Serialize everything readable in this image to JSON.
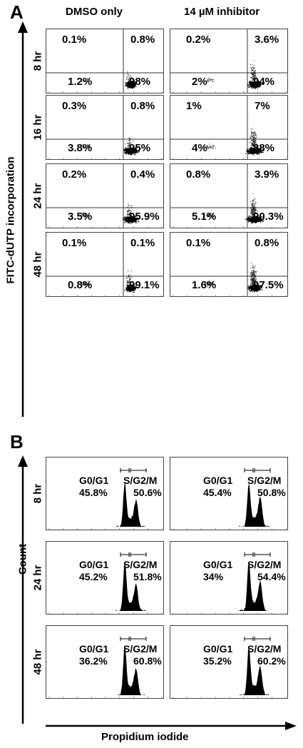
{
  "panel_a": {
    "letter": "A",
    "col_headers": [
      "DMSO only",
      "14 µM inhibitor"
    ],
    "y_axis_label": "FITC-dUTP incorporation",
    "rows": [
      {
        "time": "8 hr",
        "plots": [
          {
            "ul": "0.1%",
            "ur": "0.8%",
            "ll": "1.2%",
            "lr": "98%"
          },
          {
            "ul": "0.2%",
            "ur": "3.6%",
            "ll": "2%",
            "lr": "94%"
          }
        ]
      },
      {
        "time": "16 hr",
        "plots": [
          {
            "ul": "0.3%",
            "ur": "0.8%",
            "ll": "3.8%",
            "lr": "95%"
          },
          {
            "ul": "1%",
            "ur": "7%",
            "ll": "4%",
            "lr": "88%"
          }
        ]
      },
      {
        "time": "24 hr",
        "plots": [
          {
            "ul": "0.2%",
            "ur": "0.4%",
            "ll": "3.5%",
            "lr": "95.9%"
          },
          {
            "ul": "0.8%",
            "ur": "3.9%",
            "ll": "5.1%",
            "lr": "90.3%"
          }
        ]
      },
      {
        "time": "48 hr",
        "plots": [
          {
            "ul": "0.1%",
            "ur": "0.1%",
            "ll": "0.8%",
            "lr": "99.1%"
          },
          {
            "ul": "0.1%",
            "ur": "0.8%",
            "ll": "1.6%",
            "lr": "97.5%"
          }
        ]
      }
    ]
  },
  "panel_b": {
    "letter": "B",
    "y_axis_label": "Count",
    "x_axis_label": "Propidium iodide",
    "gate_left": "G0/G1",
    "gate_right": "S/G2/M",
    "rows": [
      {
        "time": "8 hr",
        "plots": [
          {
            "g0g1": "45.8%",
            "sg2m": "50.6%"
          },
          {
            "g0g1": "45.4%",
            "sg2m": "50.8%"
          }
        ]
      },
      {
        "time": "24 hr",
        "plots": [
          {
            "g0g1": "45.2%",
            "sg2m": "51.8%"
          },
          {
            "g0g1": "34%",
            "sg2m": "54.4%"
          }
        ]
      },
      {
        "time": "48 hr",
        "plots": [
          {
            "g0g1": "36.2%",
            "sg2m": "60.8%"
          },
          {
            "g0g1": "35.2%",
            "sg2m": "60.2%"
          }
        ]
      }
    ]
  }
}
